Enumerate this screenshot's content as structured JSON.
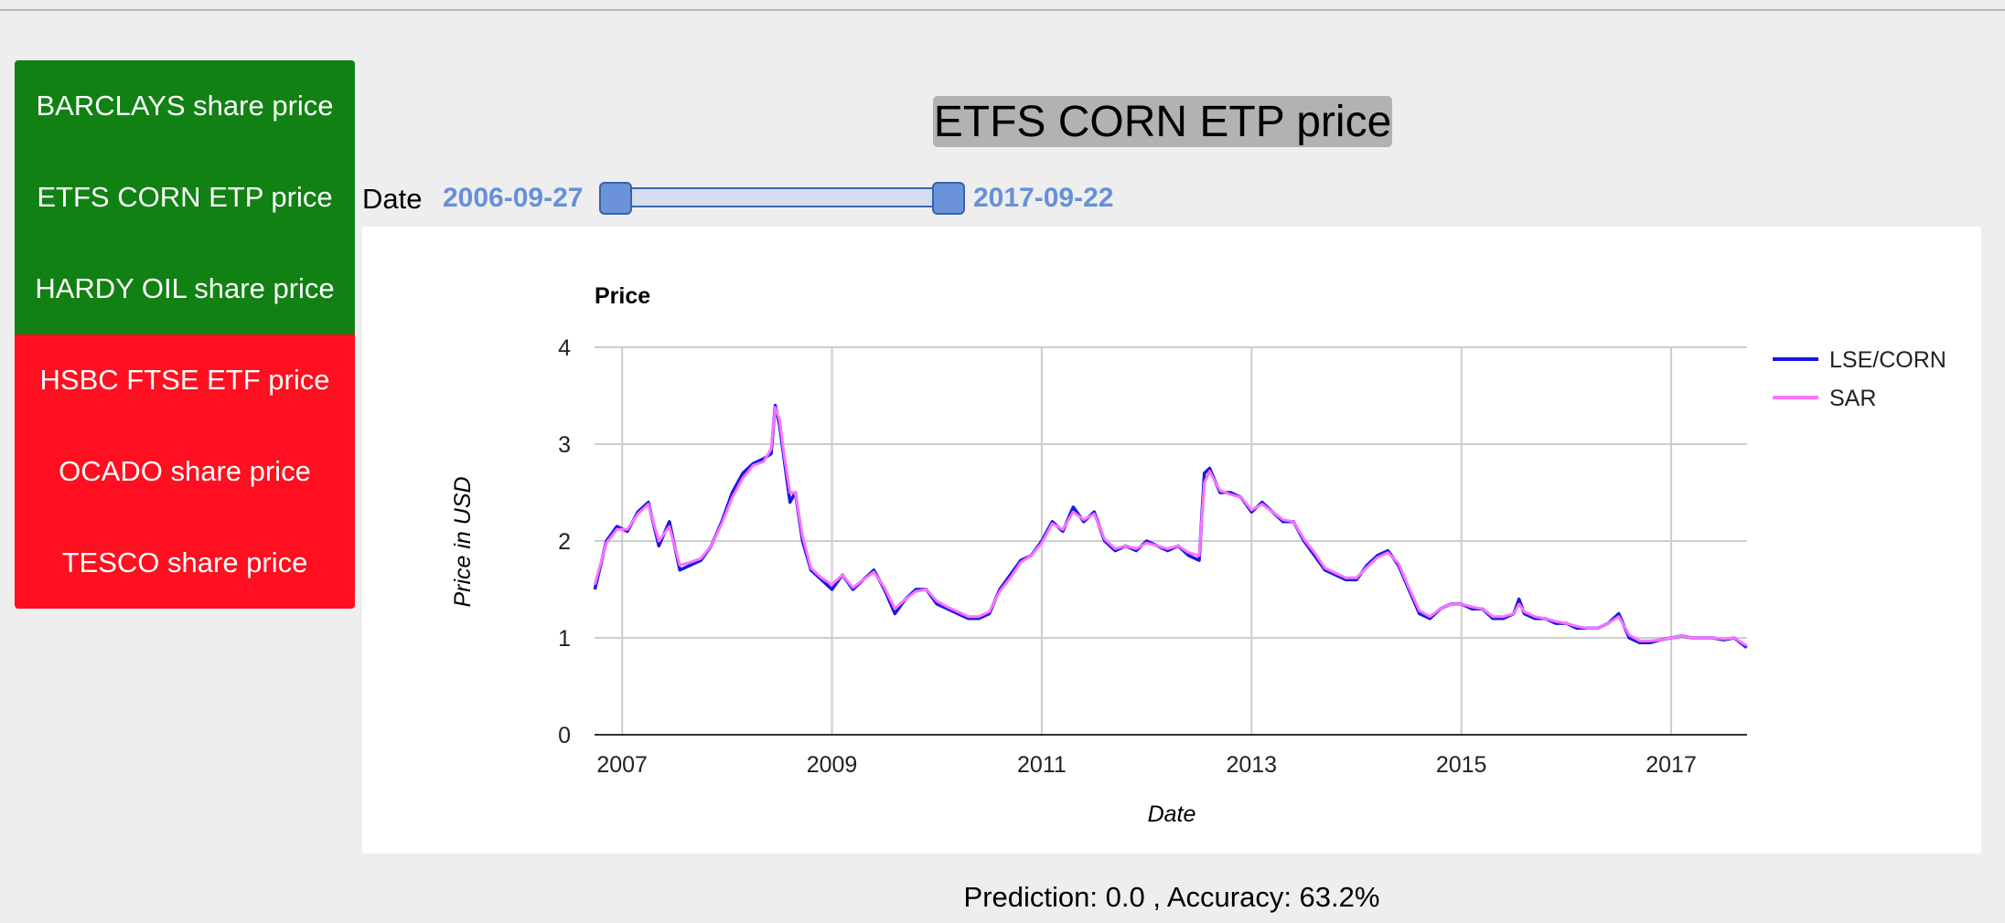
{
  "sidebar": {
    "items": [
      {
        "label": "BARCLAYS share price",
        "status": "green"
      },
      {
        "label": "ETFS CORN ETP price",
        "status": "green"
      },
      {
        "label": "HARDY OIL share price",
        "status": "green"
      },
      {
        "label": "HSBC FTSE ETF price",
        "status": "red"
      },
      {
        "label": "OCADO share price",
        "status": "red"
      },
      {
        "label": "TESCO share price",
        "status": "red"
      }
    ]
  },
  "page_title": "ETFS CORN ETP price",
  "date_range": {
    "label": "Date",
    "start": "2006-09-27",
    "end": "2017-09-22"
  },
  "prediction_text": "Prediction: 0.0 , Accuracy: 63.2%",
  "chart_data": {
    "type": "line",
    "title": "Price",
    "xlabel": "Date",
    "ylabel": "Price in USD",
    "ylim": [
      0,
      4
    ],
    "yticks": [
      0,
      1,
      2,
      3,
      4
    ],
    "xlim": [
      "2006-09-27",
      "2017-09-22"
    ],
    "xticks": [
      "2007",
      "2009",
      "2011",
      "2013",
      "2015",
      "2017"
    ],
    "grid": true,
    "legend": "right",
    "colors": {
      "LSE/CORN": "#1a17e6",
      "SAR": "#ff72ff"
    },
    "x": [
      2006.74,
      2006.85,
      2006.95,
      2007.05,
      2007.15,
      2007.25,
      2007.35,
      2007.45,
      2007.55,
      2007.65,
      2007.75,
      2007.85,
      2007.95,
      2008.05,
      2008.15,
      2008.25,
      2008.35,
      2008.42,
      2008.46,
      2008.5,
      2008.55,
      2008.6,
      2008.65,
      2008.72,
      2008.8,
      2008.9,
      2009.0,
      2009.1,
      2009.2,
      2009.3,
      2009.4,
      2009.5,
      2009.6,
      2009.7,
      2009.8,
      2009.9,
      2010.0,
      2010.1,
      2010.2,
      2010.3,
      2010.4,
      2010.5,
      2010.6,
      2010.7,
      2010.8,
      2010.9,
      2011.0,
      2011.1,
      2011.2,
      2011.3,
      2011.4,
      2011.5,
      2011.6,
      2011.7,
      2011.8,
      2011.9,
      2012.0,
      2012.1,
      2012.2,
      2012.3,
      2012.4,
      2012.5,
      2012.55,
      2012.6,
      2012.7,
      2012.8,
      2012.9,
      2013.0,
      2013.1,
      2013.2,
      2013.3,
      2013.4,
      2013.5,
      2013.6,
      2013.7,
      2013.8,
      2013.9,
      2014.0,
      2014.1,
      2014.2,
      2014.3,
      2014.4,
      2014.5,
      2014.6,
      2014.7,
      2014.8,
      2014.9,
      2015.0,
      2015.1,
      2015.2,
      2015.3,
      2015.4,
      2015.5,
      2015.55,
      2015.6,
      2015.7,
      2015.8,
      2015.9,
      2016.0,
      2016.1,
      2016.2,
      2016.3,
      2016.4,
      2016.5,
      2016.6,
      2016.7,
      2016.8,
      2016.9,
      2017.0,
      2017.1,
      2017.2,
      2017.3,
      2017.4,
      2017.5,
      2017.6,
      2017.72
    ],
    "series": [
      {
        "name": "LSE/CORN",
        "values": [
          1.5,
          2.0,
          2.15,
          2.1,
          2.3,
          2.4,
          1.95,
          2.2,
          1.7,
          1.75,
          1.8,
          1.95,
          2.2,
          2.5,
          2.7,
          2.8,
          2.85,
          2.9,
          3.4,
          3.2,
          2.8,
          2.4,
          2.5,
          2.0,
          1.7,
          1.6,
          1.5,
          1.65,
          1.5,
          1.6,
          1.7,
          1.5,
          1.25,
          1.4,
          1.5,
          1.5,
          1.35,
          1.3,
          1.25,
          1.2,
          1.2,
          1.25,
          1.5,
          1.65,
          1.8,
          1.85,
          2.0,
          2.2,
          2.1,
          2.35,
          2.2,
          2.3,
          2.0,
          1.9,
          1.95,
          1.9,
          2.0,
          1.95,
          1.9,
          1.95,
          1.85,
          1.8,
          2.7,
          2.75,
          2.5,
          2.5,
          2.45,
          2.3,
          2.4,
          2.3,
          2.2,
          2.2,
          2.0,
          1.85,
          1.7,
          1.65,
          1.6,
          1.6,
          1.75,
          1.85,
          1.9,
          1.75,
          1.5,
          1.25,
          1.2,
          1.3,
          1.35,
          1.35,
          1.3,
          1.3,
          1.2,
          1.2,
          1.25,
          1.4,
          1.25,
          1.2,
          1.2,
          1.15,
          1.15,
          1.1,
          1.1,
          1.1,
          1.15,
          1.25,
          1.0,
          0.95,
          0.95,
          0.98,
          1.0,
          1.02,
          1.0,
          1.0,
          1.0,
          0.98,
          1.0,
          0.9
        ]
      },
      {
        "name": "SAR",
        "values": [
          1.55,
          1.98,
          2.12,
          2.12,
          2.28,
          2.38,
          2.0,
          2.15,
          1.75,
          1.78,
          1.82,
          1.95,
          2.18,
          2.45,
          2.65,
          2.78,
          2.82,
          2.95,
          3.38,
          3.25,
          2.85,
          2.5,
          2.5,
          2.05,
          1.72,
          1.62,
          1.55,
          1.65,
          1.52,
          1.6,
          1.68,
          1.52,
          1.3,
          1.4,
          1.48,
          1.5,
          1.38,
          1.32,
          1.27,
          1.22,
          1.22,
          1.27,
          1.48,
          1.62,
          1.78,
          1.85,
          1.98,
          2.18,
          2.12,
          2.3,
          2.22,
          2.28,
          2.02,
          1.92,
          1.95,
          1.92,
          1.98,
          1.95,
          1.92,
          1.95,
          1.88,
          1.85,
          2.6,
          2.72,
          2.52,
          2.48,
          2.45,
          2.32,
          2.38,
          2.3,
          2.22,
          2.2,
          2.02,
          1.88,
          1.72,
          1.67,
          1.62,
          1.62,
          1.73,
          1.83,
          1.88,
          1.77,
          1.52,
          1.28,
          1.22,
          1.3,
          1.35,
          1.35,
          1.32,
          1.3,
          1.22,
          1.22,
          1.25,
          1.35,
          1.27,
          1.22,
          1.2,
          1.17,
          1.15,
          1.12,
          1.1,
          1.1,
          1.15,
          1.22,
          1.03,
          0.97,
          0.97,
          0.98,
          1.0,
          1.02,
          1.0,
          1.0,
          1.0,
          0.99,
          1.0,
          0.92
        ]
      }
    ]
  }
}
